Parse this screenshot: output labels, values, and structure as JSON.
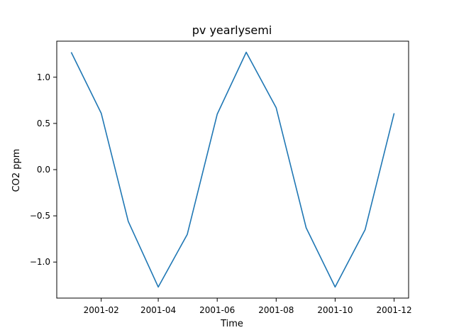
{
  "chart_data": {
    "type": "line",
    "title": "pv yearlysemi",
    "xlabel": "Time",
    "ylabel": "CO2 ppm",
    "x": [
      "2001-01-01",
      "2001-02-01",
      "2001-03-01",
      "2001-04-01",
      "2001-05-01",
      "2001-06-01",
      "2001-07-01",
      "2001-08-01",
      "2001-09-01",
      "2001-10-01",
      "2001-11-01",
      "2001-12-01"
    ],
    "series": [
      {
        "values": [
          1.27,
          0.61,
          -0.56,
          -1.27,
          -0.7,
          0.6,
          1.27,
          0.67,
          -0.63,
          -1.27,
          -0.65,
          0.61
        ],
        "color": "#1f77b4"
      }
    ],
    "xlim": [
      "2000-12-17",
      "2001-12-16"
    ],
    "ylim": [
      -1.39,
      1.39
    ],
    "xticks": [
      {
        "value": "2001-02-01",
        "label": "2001-02"
      },
      {
        "value": "2001-04-01",
        "label": "2001-04"
      },
      {
        "value": "2001-06-01",
        "label": "2001-06"
      },
      {
        "value": "2001-08-01",
        "label": "2001-08"
      },
      {
        "value": "2001-10-01",
        "label": "2001-10"
      },
      {
        "value": "2001-12-01",
        "label": "2001-12"
      }
    ],
    "yticks": [
      {
        "value": -1.0,
        "label": "−1.0"
      },
      {
        "value": -0.5,
        "label": "−0.5"
      },
      {
        "value": 0.0,
        "label": "0.0"
      },
      {
        "value": 0.5,
        "label": "0.5"
      },
      {
        "value": 1.0,
        "label": "1.0"
      }
    ],
    "grid": false,
    "legend": "none"
  }
}
